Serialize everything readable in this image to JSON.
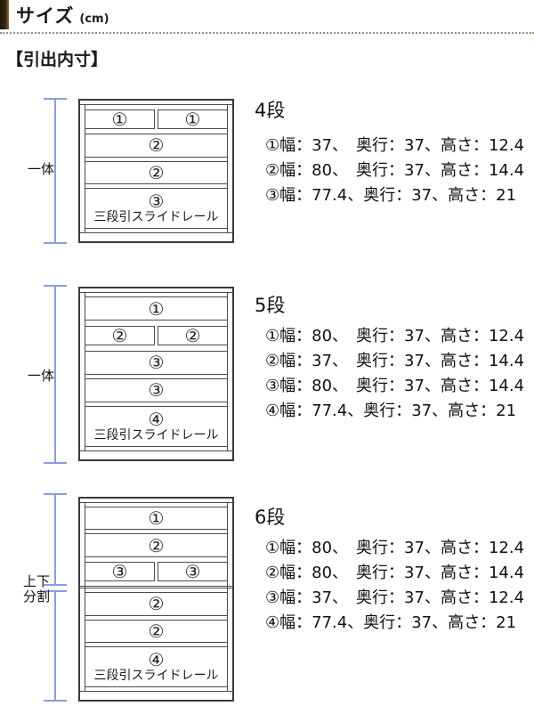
{
  "header": {
    "title": "サイズ",
    "unit": "(cm)"
  },
  "section_heading": "【引出内寸】",
  "colors": {
    "accent": "#33240e",
    "measure_line": "#8d9be1",
    "diagram_line": "#4a4a4a"
  },
  "sections": [
    {
      "title": "4段",
      "measure_label": "一体",
      "rows": [
        {
          "type": "split",
          "label": "①"
        },
        {
          "type": "full",
          "label": "②"
        },
        {
          "type": "full",
          "label": "②"
        },
        {
          "type": "rail",
          "label": "③",
          "rail_text": "三段引スライドレール"
        }
      ],
      "specs": [
        "①幅：37、　奥行：37、高さ：12.4",
        "②幅：80、　奥行：37、高さ：14.4",
        "③幅：77.4、奥行：37、高さ：21"
      ]
    },
    {
      "title": "5段",
      "measure_label": "一体",
      "rows": [
        {
          "type": "full",
          "label": "①"
        },
        {
          "type": "split",
          "label": "②"
        },
        {
          "type": "full",
          "label": "③"
        },
        {
          "type": "full",
          "label": "③"
        },
        {
          "type": "rail",
          "label": "④",
          "rail_text": "三段引スライドレール"
        }
      ],
      "specs": [
        "①幅：80、　奥行：37、高さ：12.4",
        "②幅：37、　奥行：37、高さ：14.4",
        "③幅：80、　奥行：37、高さ：14.4",
        "④幅：77.4、奥行：37、高さ：21"
      ]
    },
    {
      "title": "6段",
      "measure_label": "上下\n分割",
      "rows": [
        {
          "type": "full",
          "label": "①"
        },
        {
          "type": "full",
          "label": "②"
        },
        {
          "type": "split",
          "label": "③"
        },
        {
          "type": "divider"
        },
        {
          "type": "full",
          "label": "②"
        },
        {
          "type": "full",
          "label": "②"
        },
        {
          "type": "rail",
          "label": "④",
          "rail_text": "三段引スライドレール"
        }
      ],
      "specs": [
        "①幅：80、　奥行：37、高さ：12.4",
        "②幅：80、　奥行：37、高さ：14.4",
        "③幅：37、　奥行：37、高さ：12.4",
        "④幅：77.4、奥行：37、高さ：21"
      ]
    }
  ]
}
